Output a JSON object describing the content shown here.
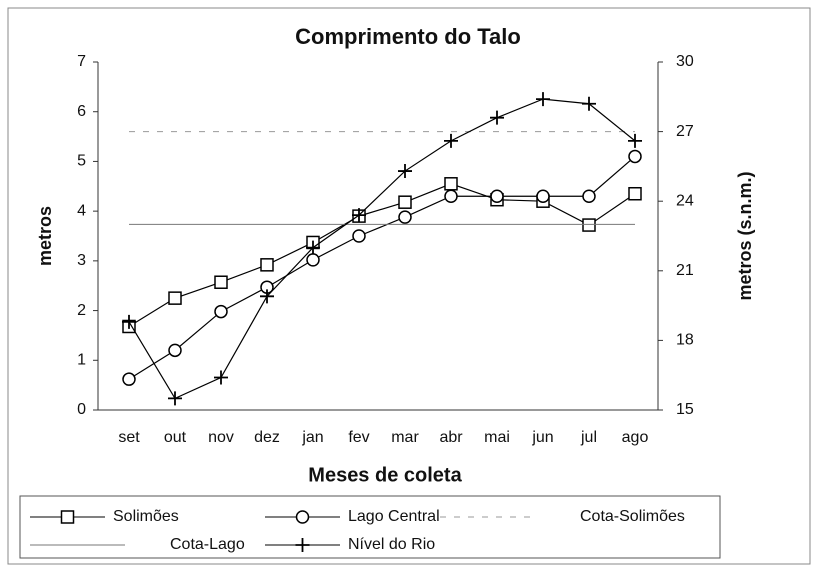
{
  "chart_data": {
    "type": "line",
    "title": "Comprimento do Talo",
    "xlabel": "Meses de coleta",
    "ylabel": "metros",
    "y2label": "metros (s.n.m.)",
    "categories": [
      "set",
      "out",
      "nov",
      "dez",
      "jan",
      "fev",
      "mar",
      "abr",
      "mai",
      "jun",
      "jul",
      "ago"
    ],
    "ylim": [
      0,
      7
    ],
    "yticks": [
      0,
      1,
      2,
      3,
      4,
      5,
      6,
      7
    ],
    "y2lim": [
      15,
      30
    ],
    "y2ticks": [
      15,
      18,
      21,
      24,
      27,
      30
    ],
    "series": [
      {
        "name": "Solimões",
        "color": "#000000",
        "marker": "square",
        "values": [
          1.68,
          2.25,
          2.57,
          2.92,
          3.37,
          3.9,
          4.18,
          4.55,
          4.23,
          4.2,
          3.72,
          4.35
        ]
      },
      {
        "name": "Lago Central",
        "color": "#000000",
        "marker": "circle",
        "values": [
          0.62,
          1.2,
          1.98,
          2.47,
          3.02,
          3.5,
          3.88,
          4.3,
          4.3,
          4.3,
          4.3,
          5.1
        ]
      },
      {
        "name": "Cota-Solimões",
        "color": "#999999",
        "marker": "none",
        "dash": true,
        "axis": "y2",
        "values": [
          27,
          27,
          27,
          27,
          27,
          27,
          27,
          27,
          27,
          27,
          27,
          27
        ]
      },
      {
        "name": "Cota-Lago",
        "color": "#777777",
        "marker": "none",
        "axis": "y2",
        "values": [
          23,
          23,
          23,
          23,
          23,
          23,
          23,
          23,
          23,
          23,
          23,
          23
        ]
      },
      {
        "name": "Nível do Rio",
        "color": "#000000",
        "marker": "plus",
        "axis": "y2",
        "values": [
          18.8,
          15.5,
          16.4,
          19.9,
          22.0,
          23.4,
          25.3,
          26.6,
          27.6,
          28.4,
          28.2,
          26.6
        ]
      }
    ]
  }
}
